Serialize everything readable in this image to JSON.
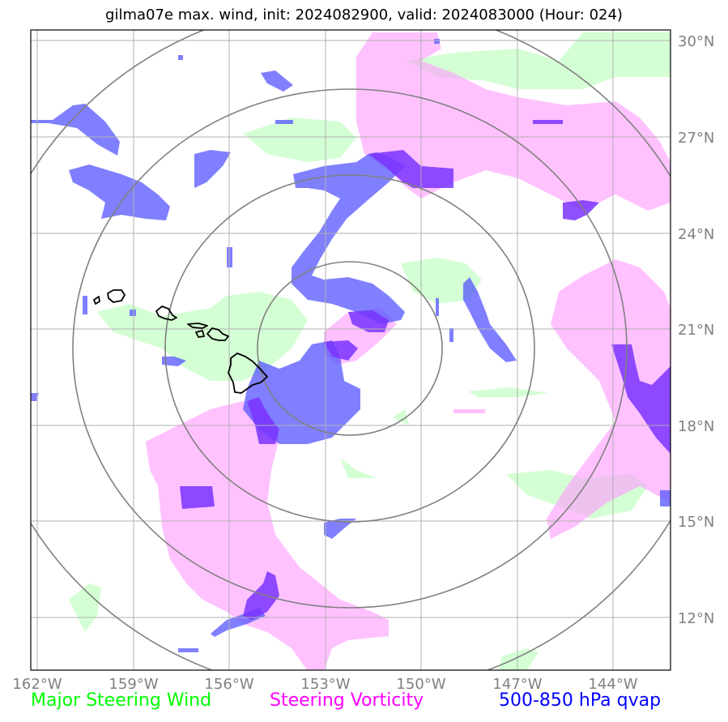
{
  "title": "gilma07e max. wind, init: 2024082900, valid: 2024083000 (Hour: 024)",
  "map": {
    "lon_ticks": [
      "162°W",
      "159°W",
      "156°W",
      "153°W",
      "150°W",
      "147°W",
      "144°W"
    ],
    "lat_ticks": [
      "30°N",
      "27°N",
      "24°N",
      "21°N",
      "18°N",
      "15°N",
      "12°N"
    ],
    "lon_range": [
      -162.2,
      -142.2
    ],
    "lat_range": [
      10.3,
      30.3
    ],
    "range_rings": 4,
    "colors": {
      "steering_wind": "#ccffcc",
      "vorticity": "#ff99ff",
      "qvap": "#5555ff",
      "qvap_dark": "#7a33ff",
      "ring": "#808080",
      "grid": "#b0b0b0",
      "coast": "#000000"
    }
  },
  "legend": {
    "wind": {
      "label": "Major Steering Wind",
      "color": "#00ff00"
    },
    "vorticity": {
      "label": "Steering Vorticity",
      "color": "#ff00ff"
    },
    "qvap": {
      "label": "500-850 hPa qvap",
      "color": "#0000ff"
    }
  }
}
